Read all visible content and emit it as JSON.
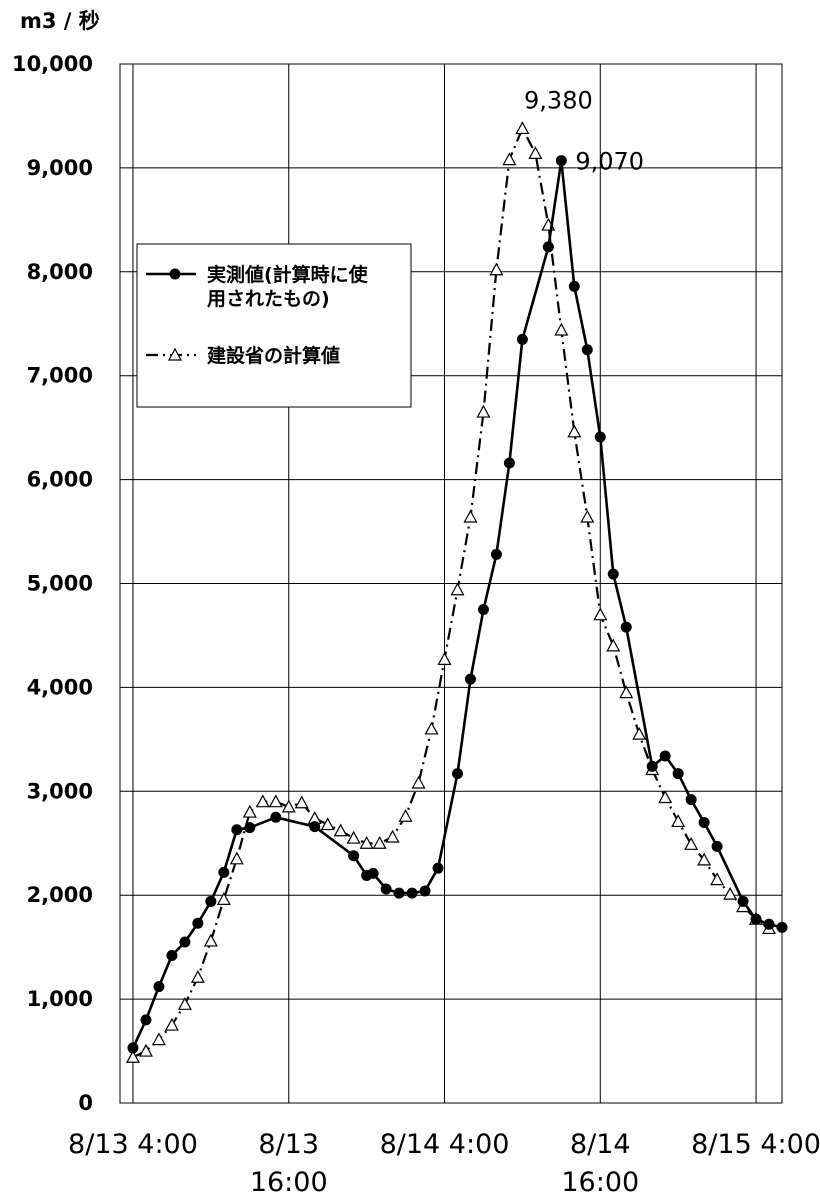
{
  "chart_data": {
    "type": "line",
    "y_unit": "m3 / 秒",
    "ylim": [
      0,
      10000
    ],
    "y_ticks": [
      {
        "value": 0,
        "label": "0"
      },
      {
        "value": 1000,
        "label": "1,000"
      },
      {
        "value": 2000,
        "label": "2,000"
      },
      {
        "value": 3000,
        "label": "3,000"
      },
      {
        "value": 4000,
        "label": "4,000"
      },
      {
        "value": 5000,
        "label": "5,000"
      },
      {
        "value": 6000,
        "label": "6,000"
      },
      {
        "value": 7000,
        "label": "7,000"
      },
      {
        "value": 8000,
        "label": "8,000"
      },
      {
        "value": 9000,
        "label": "9,000"
      },
      {
        "value": 10000,
        "label": "10,000"
      }
    ],
    "xlim": [
      "8/13 3:00",
      "8/15 6:00"
    ],
    "x_ticks": [
      {
        "value": "8/13 4:00",
        "lines": [
          "8/13 4:00"
        ]
      },
      {
        "value": "8/13 16:00",
        "lines": [
          "8/13",
          "16:00"
        ]
      },
      {
        "value": "8/14 4:00",
        "lines": [
          "8/14 4:00"
        ]
      },
      {
        "value": "8/14 16:00",
        "lines": [
          "8/14",
          "16:00"
        ]
      },
      {
        "value": "8/15 4:00",
        "lines": [
          "8/15 4:00"
        ]
      }
    ],
    "grid": true,
    "legend_position": "upper-left",
    "series": [
      {
        "name": "実測値(計算時に使用されたもの)",
        "legend_lines": [
          "実測値(計算時に使",
          "用されたもの)"
        ],
        "marker": "filled-circle",
        "line": "solid",
        "color": "#000000",
        "points": [
          [
            "8/13 4:00",
            530
          ],
          [
            "8/13 5:00",
            800
          ],
          [
            "8/13 6:00",
            1120
          ],
          [
            "8/13 7:00",
            1420
          ],
          [
            "8/13 8:00",
            1550
          ],
          [
            "8/13 9:00",
            1730
          ],
          [
            "8/13 10:00",
            1940
          ],
          [
            "8/13 11:00",
            2220
          ],
          [
            "8/13 12:00",
            2630
          ],
          [
            "8/13 13:00",
            2650
          ],
          [
            "8/13 15:00",
            2750
          ],
          [
            "8/13 18:00",
            2660
          ],
          [
            "8/13 21:00",
            2380
          ],
          [
            "8/13 22:00",
            2190
          ],
          [
            "8/13 22:30",
            2210
          ],
          [
            "8/13 23:30",
            2060
          ],
          [
            "8/14 0:30",
            2020
          ],
          [
            "8/14 1:30",
            2020
          ],
          [
            "8/14 2:30",
            2040
          ],
          [
            "8/14 3:30",
            2260
          ],
          [
            "8/14 5:00",
            3170
          ],
          [
            "8/14 6:00",
            4080
          ],
          [
            "8/14 7:00",
            4750
          ],
          [
            "8/14 8:00",
            5280
          ],
          [
            "8/14 9:00",
            6160
          ],
          [
            "8/14 10:00",
            7350
          ],
          [
            "8/14 12:00",
            8240
          ],
          [
            "8/14 13:00",
            9070
          ],
          [
            "8/14 14:00",
            7860
          ],
          [
            "8/14 15:00",
            7250
          ],
          [
            "8/14 16:00",
            6410
          ],
          [
            "8/14 17:00",
            5090
          ],
          [
            "8/14 18:00",
            4580
          ],
          [
            "8/14 20:00",
            3240
          ],
          [
            "8/14 21:00",
            3340
          ],
          [
            "8/14 22:00",
            3170
          ],
          [
            "8/14 23:00",
            2920
          ],
          [
            "8/15 0:00",
            2700
          ],
          [
            "8/15 1:00",
            2470
          ],
          [
            "8/15 3:00",
            1940
          ],
          [
            "8/15 4:00",
            1770
          ],
          [
            "8/15 5:00",
            1720
          ],
          [
            "8/15 6:00",
            1690
          ]
        ]
      },
      {
        "name": "建設省の計算値",
        "legend_lines": [
          "建設省の計算値"
        ],
        "marker": "open-triangle",
        "line": "dash-dot",
        "color": "#000000",
        "points": [
          [
            "8/13 4:00",
            440
          ],
          [
            "8/13 5:00",
            500
          ],
          [
            "8/13 6:00",
            610
          ],
          [
            "8/13 7:00",
            750
          ],
          [
            "8/13 8:00",
            950
          ],
          [
            "8/13 9:00",
            1210
          ],
          [
            "8/13 10:00",
            1560
          ],
          [
            "8/13 11:00",
            1960
          ],
          [
            "8/13 12:00",
            2350
          ],
          [
            "8/13 13:00",
            2800
          ],
          [
            "8/13 14:00",
            2900
          ],
          [
            "8/13 15:00",
            2900
          ],
          [
            "8/13 16:00",
            2850
          ],
          [
            "8/13 17:00",
            2890
          ],
          [
            "8/13 18:00",
            2740
          ],
          [
            "8/13 19:00",
            2680
          ],
          [
            "8/13 20:00",
            2620
          ],
          [
            "8/13 21:00",
            2550
          ],
          [
            "8/13 22:00",
            2500
          ],
          [
            "8/13 23:00",
            2500
          ],
          [
            "8/14 0:00",
            2560
          ],
          [
            "8/14 1:00",
            2760
          ],
          [
            "8/14 2:00",
            3080
          ],
          [
            "8/14 3:00",
            3600
          ],
          [
            "8/14 4:00",
            4270
          ],
          [
            "8/14 5:00",
            4940
          ],
          [
            "8/14 6:00",
            5640
          ],
          [
            "8/14 7:00",
            6650
          ],
          [
            "8/14 8:00",
            8020
          ],
          [
            "8/14 9:00",
            9080
          ],
          [
            "8/14 10:00",
            9380
          ],
          [
            "8/14 11:00",
            9140
          ],
          [
            "8/14 12:00",
            8450
          ],
          [
            "8/14 13:00",
            7440
          ],
          [
            "8/14 14:00",
            6460
          ],
          [
            "8/14 15:00",
            5640
          ],
          [
            "8/14 16:00",
            4700
          ],
          [
            "8/14 17:00",
            4400
          ],
          [
            "8/14 18:00",
            3950
          ],
          [
            "8/14 19:00",
            3550
          ],
          [
            "8/14 20:00",
            3210
          ],
          [
            "8/14 21:00",
            2940
          ],
          [
            "8/14 22:00",
            2710
          ],
          [
            "8/14 23:00",
            2490
          ],
          [
            "8/15 0:00",
            2340
          ],
          [
            "8/15 1:00",
            2150
          ],
          [
            "8/15 2:00",
            2010
          ],
          [
            "8/15 3:00",
            1890
          ],
          [
            "8/15 4:00",
            1770
          ],
          [
            "8/15 5:00",
            1680
          ]
        ]
      }
    ],
    "annotations": [
      {
        "text": "9,380",
        "x": "8/14 10:00",
        "y": 9380,
        "position": "above"
      },
      {
        "text": "9,070",
        "x": "8/14 13:00",
        "y": 9070,
        "position": "right"
      }
    ]
  }
}
